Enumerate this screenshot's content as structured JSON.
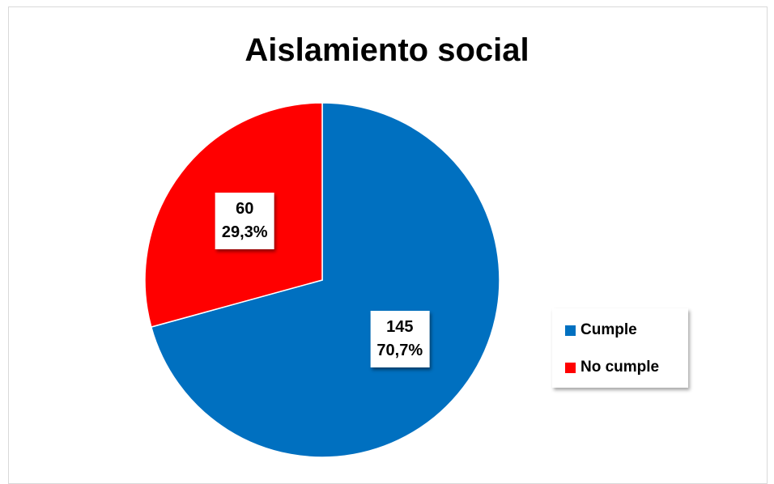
{
  "chart_data": {
    "type": "pie",
    "title": "Aislamiento social",
    "slices": [
      {
        "label": "Cumple",
        "value": 145,
        "percent_label": "70,7%",
        "color": "#0070C0"
      },
      {
        "label": "No cumple",
        "value": 60,
        "percent_label": "29,3%",
        "color": "#FF0000"
      }
    ],
    "legend_placement": "right"
  }
}
